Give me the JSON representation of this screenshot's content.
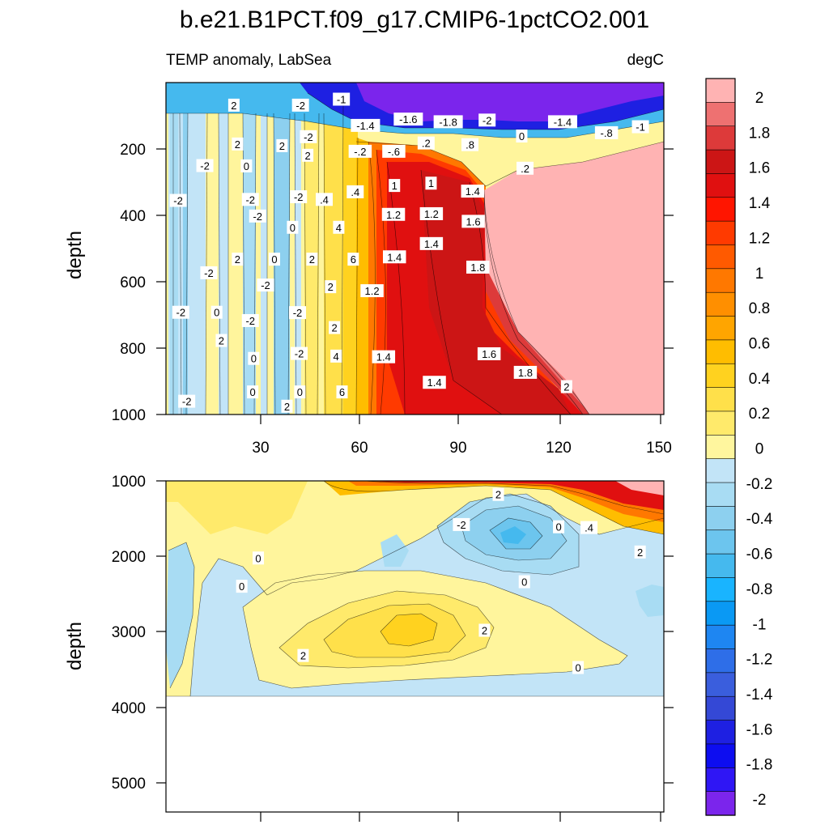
{
  "chart_data": {
    "type": "heatmap",
    "title": "b.e21.B1PCT.f09_g17.CMIP6-1pctCO2.001",
    "left_subtitle": "TEMP anomaly, LabSea",
    "right_subtitle": "degC",
    "ylabel": "depth",
    "xlim": [
      0,
      151
    ],
    "x_ticks": [
      30,
      60,
      90,
      120,
      150
    ],
    "x_tick_labels": [
      "30",
      "60",
      "90",
      "120",
      "150"
    ],
    "panels": [
      {
        "name": "upper",
        "ylim": [
          0,
          1000
        ],
        "y_ticks": [
          200,
          400,
          600,
          800,
          1000
        ],
        "y_tick_labels": [
          "200",
          "400",
          "600",
          "800",
          "1000"
        ],
        "contour_labels": [
          {
            "text": "-1",
            "x": 53.2,
            "y": 50
          },
          {
            "text": "-1.6",
            "x": 73.5,
            "y": 110
          },
          {
            "text": "-1.8",
            "x": 85.6,
            "y": 118
          },
          {
            "text": "-2",
            "x": 97.4,
            "y": 113
          },
          {
            "text": "-1.4",
            "x": 60.5,
            "y": 129
          },
          {
            "text": "-1.4",
            "x": 120.3,
            "y": 118
          },
          {
            "text": "-.8",
            "x": 133.6,
            "y": 151
          },
          {
            "text": "-1",
            "x": 143.9,
            "y": 133
          },
          {
            "text": "0",
            "x": 107.9,
            "y": 161
          },
          {
            "text": "-2",
            "x": 40.8,
            "y": 68
          },
          {
            "text": "2",
            "x": 20.6,
            "y": 68
          },
          {
            "text": "2",
            "x": 21.7,
            "y": 185
          },
          {
            "text": "2",
            "x": 35.2,
            "y": 190
          },
          {
            "text": "-2",
            "x": 43.2,
            "y": 163
          },
          {
            "text": "2",
            "x": 43.0,
            "y": 219
          },
          {
            "text": "-.2",
            "x": 58.9,
            "y": 207
          },
          {
            "text": "-.6",
            "x": 69.1,
            "y": 207
          },
          {
            "text": ".2",
            "x": 78.9,
            "y": 182
          },
          {
            "text": ".8",
            "x": 92.2,
            "y": 187
          },
          {
            "text": ".2",
            "x": 108.9,
            "y": 258
          },
          {
            "text": "-2",
            "x": 11.8,
            "y": 250
          },
          {
            "text": "0",
            "x": 24.4,
            "y": 251
          },
          {
            "text": "-2",
            "x": 3.7,
            "y": 355
          },
          {
            "text": "-2",
            "x": 25.6,
            "y": 352
          },
          {
            "text": "-2",
            "x": 40.2,
            "y": 344
          },
          {
            "text": ".4",
            "x": 48.0,
            "y": 352
          },
          {
            "text": ".4",
            "x": 57.4,
            "y": 329
          },
          {
            "text": "1",
            "x": 69.3,
            "y": 310
          },
          {
            "text": "1",
            "x": 80.4,
            "y": 303
          },
          {
            "text": "1.4",
            "x": 93.0,
            "y": 327
          },
          {
            "text": "-2",
            "x": 27.8,
            "y": 402
          },
          {
            "text": "0",
            "x": 38.4,
            "y": 436
          },
          {
            "text": "4",
            "x": 52.4,
            "y": 436
          },
          {
            "text": "1.2",
            "x": 69.0,
            "y": 397
          },
          {
            "text": "1.2",
            "x": 80.5,
            "y": 395
          },
          {
            "text": "1.6",
            "x": 93.2,
            "y": 418
          },
          {
            "text": "0",
            "x": 32.9,
            "y": 532
          },
          {
            "text": "2",
            "x": 21.7,
            "y": 532
          },
          {
            "text": "-2",
            "x": 13.0,
            "y": 573
          },
          {
            "text": "2",
            "x": 44.3,
            "y": 532
          },
          {
            "text": "6",
            "x": 56.8,
            "y": 532
          },
          {
            "text": "1.4",
            "x": 69.3,
            "y": 525
          },
          {
            "text": "1.4",
            "x": 80.5,
            "y": 485
          },
          {
            "text": "1.8",
            "x": 94.6,
            "y": 556
          },
          {
            "text": "-2",
            "x": 30.2,
            "y": 610
          },
          {
            "text": "2",
            "x": 49.9,
            "y": 615
          },
          {
            "text": "1.2",
            "x": 62.5,
            "y": 627
          },
          {
            "text": "-2",
            "x": 4.5,
            "y": 692
          },
          {
            "text": "0",
            "x": 15.4,
            "y": 692
          },
          {
            "text": "-2",
            "x": 25.6,
            "y": 717
          },
          {
            "text": "-2",
            "x": 39.9,
            "y": 693
          },
          {
            "text": "2",
            "x": 51.1,
            "y": 738
          },
          {
            "text": "2",
            "x": 16.8,
            "y": 777
          },
          {
            "text": "0",
            "x": 26.6,
            "y": 831
          },
          {
            "text": "-2",
            "x": 40.4,
            "y": 816
          },
          {
            "text": "4",
            "x": 51.6,
            "y": 824
          },
          {
            "text": "1.4",
            "x": 66.0,
            "y": 826
          },
          {
            "text": "1.6",
            "x": 98.0,
            "y": 817
          },
          {
            "text": "1.8",
            "x": 109.0,
            "y": 873
          },
          {
            "text": "2",
            "x": 121.5,
            "y": 916
          },
          {
            "text": "1.4",
            "x": 81.4,
            "y": 903
          },
          {
            "text": "0",
            "x": 26.3,
            "y": 932
          },
          {
            "text": "0",
            "x": 40.6,
            "y": 932
          },
          {
            "text": "6",
            "x": 53.4,
            "y": 932
          },
          {
            "text": "-2",
            "x": 6.3,
            "y": 960
          },
          {
            "text": "2",
            "x": 36.7,
            "y": 975
          }
        ]
      },
      {
        "name": "lower",
        "ylim": [
          1000,
          5400
        ],
        "y_ticks": [
          1000,
          2000,
          3000,
          4000,
          5000
        ],
        "y_tick_labels": [
          "1000",
          "2000",
          "3000",
          "4000",
          "5000"
        ],
        "valid_depth_max": 3870,
        "contour_labels": [
          {
            "text": "2",
            "x": 100.8,
            "y": 1180
          },
          {
            "text": "-2",
            "x": 89.6,
            "y": 1580
          },
          {
            "text": "0",
            "x": 119.1,
            "y": 1610
          },
          {
            "text": ".4",
            "x": 128.3,
            "y": 1620
          },
          {
            "text": "2",
            "x": 143.8,
            "y": 1945
          },
          {
            "text": "0",
            "x": 28.0,
            "y": 2025
          },
          {
            "text": "0",
            "x": 108.7,
            "y": 2340
          },
          {
            "text": "0",
            "x": 23.0,
            "y": 2400
          },
          {
            "text": "2",
            "x": 96.6,
            "y": 2985
          },
          {
            "text": "2",
            "x": 41.6,
            "y": 3320
          },
          {
            "text": "0",
            "x": 125.0,
            "y": 3480
          }
        ]
      }
    ],
    "colorbar": {
      "levels": [
        "2",
        "1.8",
        "1.6",
        "1.4",
        "1.2",
        "1",
        "0.8",
        "0.6",
        "0.4",
        "0.2",
        "0",
        "-0.2",
        "-0.4",
        "-0.6",
        "-0.8",
        "-1",
        "-1.2",
        "-1.4",
        "-1.6",
        "-1.8",
        "-2"
      ],
      "colors": [
        "#ffb3b3",
        "#ee7171",
        "#dd3a3a",
        "#cc1515",
        "#e01010",
        "#ff1500",
        "#ff3a00",
        "#ff5a00",
        "#ff7800",
        "#ff8f00",
        "#ffa500",
        "#ffbd00",
        "#ffd21f",
        "#ffe04a",
        "#ffea6b",
        "#fff69e",
        "#c2e4f7",
        "#a8dcf3",
        "#8dd0ef",
        "#6cc5ee",
        "#45b9ee",
        "#19b4ff",
        "#0a99f4",
        "#1e86f2",
        "#2e6ee8",
        "#3a5edd",
        "#3448d6",
        "#1e20e2",
        "#0d0df0",
        "#2f16f5",
        "#7b25ec"
      ]
    },
    "series": []
  }
}
